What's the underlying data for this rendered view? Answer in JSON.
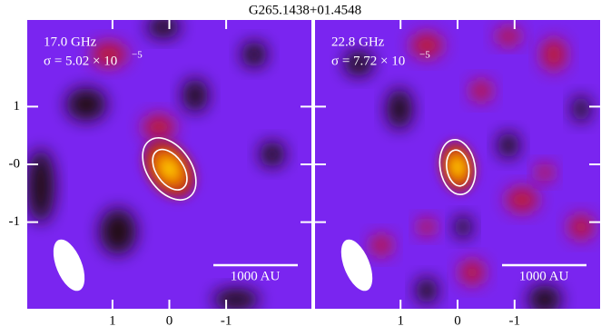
{
  "title": "G265.1438+01.4548",
  "chart_data": [
    {
      "type": "image",
      "frequency_label": "17.0 GHz",
      "sigma_label": "σ = 5.02 × 10",
      "sigma_exponent": "−5",
      "scale_bar_label": "1000 AU",
      "xlim": [
        2.5,
        -2.5
      ],
      "ylim": [
        -2.5,
        2.5
      ],
      "xticks": [
        1,
        0,
        -1
      ],
      "yticks": [
        1,
        {
          "value": 0,
          "label": "-0"
        },
        -1
      ]
    },
    {
      "type": "image",
      "frequency_label": "22.8 GHz",
      "sigma_label": "σ = 7.72 × 10",
      "sigma_exponent": "−5",
      "scale_bar_label": "1000 AU",
      "xlim": [
        2.5,
        -2.5
      ],
      "ylim": [
        -2.5,
        2.5
      ],
      "xticks": [
        1,
        0,
        -1
      ],
      "yticks": [
        1,
        0,
        -1
      ]
    }
  ]
}
